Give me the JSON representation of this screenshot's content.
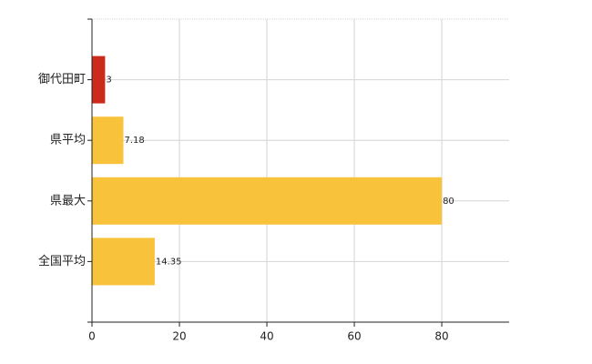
{
  "chart_data": {
    "type": "hbar",
    "categories": [
      "御代田町",
      "県平均",
      "県最大",
      "全国平均"
    ],
    "values": [
      3,
      7.18,
      80,
      14.35
    ],
    "colors": [
      "#cc2a1a",
      "#f8c33a",
      "#f8c33a",
      "#f8c33a"
    ],
    "xlim": [
      0,
      95.4
    ],
    "xticks": [
      0,
      20,
      40,
      60,
      80
    ],
    "grid": true
  }
}
